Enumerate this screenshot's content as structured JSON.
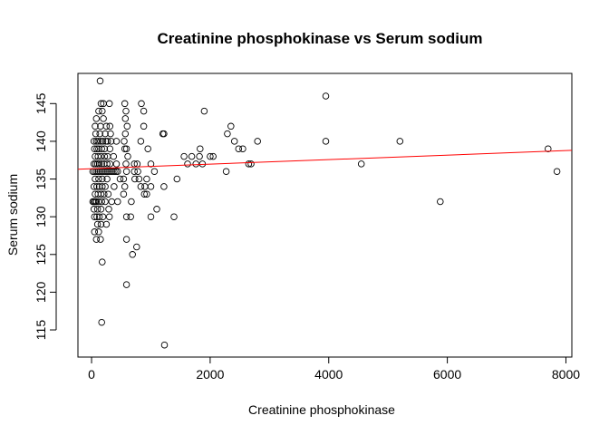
{
  "chart_data": {
    "type": "scatter",
    "title": "Creatinine phosphokinase vs Serum sodium",
    "xlabel": "Creatinine phosphokinase",
    "ylabel": "Serum sodium",
    "xlim": [
      -230,
      8100
    ],
    "ylim": [
      111.4,
      149.0
    ],
    "xticks": [
      0,
      2000,
      4000,
      6000,
      8000
    ],
    "yticks": [
      115,
      120,
      125,
      130,
      135,
      140,
      145
    ],
    "grid": false,
    "legend": "none",
    "fit_line": {
      "x": [
        -230,
        8100
      ],
      "y": [
        136.3,
        138.8
      ],
      "color": "#ff0000"
    },
    "points": [
      [
        145,
        148
      ],
      [
        160,
        145
      ],
      [
        200,
        145
      ],
      [
        300,
        145
      ],
      [
        560,
        145
      ],
      [
        840,
        145
      ],
      [
        120,
        144
      ],
      [
        180,
        144
      ],
      [
        580,
        144
      ],
      [
        880,
        144
      ],
      [
        1900,
        144
      ],
      [
        80,
        143
      ],
      [
        200,
        143
      ],
      [
        570,
        143
      ],
      [
        60,
        142
      ],
      [
        150,
        142
      ],
      [
        250,
        142
      ],
      [
        310,
        142
      ],
      [
        600,
        142
      ],
      [
        880,
        142
      ],
      [
        2350,
        142
      ],
      [
        3950,
        146
      ],
      [
        70,
        141
      ],
      [
        140,
        141
      ],
      [
        230,
        141
      ],
      [
        320,
        141
      ],
      [
        570,
        141
      ],
      [
        1200,
        141
      ],
      [
        1220,
        141
      ],
      [
        2290,
        141
      ],
      [
        40,
        140
      ],
      [
        80,
        140
      ],
      [
        110,
        140
      ],
      [
        150,
        140
      ],
      [
        190,
        140
      ],
      [
        240,
        140
      ],
      [
        270,
        140
      ],
      [
        330,
        140
      ],
      [
        420,
        140
      ],
      [
        550,
        140
      ],
      [
        830,
        140
      ],
      [
        2410,
        140
      ],
      [
        2800,
        140
      ],
      [
        3950,
        140
      ],
      [
        5200,
        140
      ],
      [
        50,
        139
      ],
      [
        90,
        139
      ],
      [
        120,
        139
      ],
      [
        170,
        139
      ],
      [
        220,
        139
      ],
      [
        310,
        139
      ],
      [
        560,
        139
      ],
      [
        590,
        139
      ],
      [
        950,
        139
      ],
      [
        1830,
        139
      ],
      [
        2480,
        139
      ],
      [
        2550,
        139
      ],
      [
        7700,
        139
      ],
      [
        60,
        138
      ],
      [
        110,
        138
      ],
      [
        160,
        138
      ],
      [
        220,
        138
      ],
      [
        270,
        138
      ],
      [
        370,
        138
      ],
      [
        610,
        138
      ],
      [
        1560,
        138
      ],
      [
        1690,
        138
      ],
      [
        1820,
        138
      ],
      [
        2000,
        138
      ],
      [
        2050,
        138
      ],
      [
        40,
        137
      ],
      [
        70,
        137
      ],
      [
        100,
        137
      ],
      [
        130,
        137
      ],
      [
        170,
        137
      ],
      [
        210,
        137
      ],
      [
        260,
        137
      ],
      [
        310,
        137
      ],
      [
        420,
        137
      ],
      [
        580,
        137
      ],
      [
        720,
        137
      ],
      [
        770,
        137
      ],
      [
        1000,
        137
      ],
      [
        1620,
        137
      ],
      [
        1760,
        137
      ],
      [
        1870,
        137
      ],
      [
        2650,
        137
      ],
      [
        2690,
        137
      ],
      [
        4550,
        137
      ],
      [
        20,
        136
      ],
      [
        50,
        136
      ],
      [
        80,
        136
      ],
      [
        110,
        136
      ],
      [
        140,
        136
      ],
      [
        170,
        136
      ],
      [
        200,
        136
      ],
      [
        230,
        136
      ],
      [
        260,
        136
      ],
      [
        290,
        136
      ],
      [
        320,
        136
      ],
      [
        350,
        136
      ],
      [
        380,
        136
      ],
      [
        410,
        136
      ],
      [
        440,
        136
      ],
      [
        590,
        136
      ],
      [
        720,
        136
      ],
      [
        780,
        136
      ],
      [
        1060,
        136
      ],
      [
        2270,
        136
      ],
      [
        7850,
        136
      ],
      [
        60,
        135
      ],
      [
        120,
        135
      ],
      [
        180,
        135
      ],
      [
        260,
        135
      ],
      [
        480,
        135
      ],
      [
        540,
        135
      ],
      [
        730,
        135
      ],
      [
        800,
        135
      ],
      [
        930,
        135
      ],
      [
        1440,
        135
      ],
      [
        40,
        134
      ],
      [
        90,
        134
      ],
      [
        130,
        134
      ],
      [
        180,
        134
      ],
      [
        230,
        134
      ],
      [
        380,
        134
      ],
      [
        560,
        134
      ],
      [
        830,
        134
      ],
      [
        900,
        134
      ],
      [
        1000,
        134
      ],
      [
        1220,
        134
      ],
      [
        60,
        133
      ],
      [
        110,
        133
      ],
      [
        160,
        133
      ],
      [
        210,
        133
      ],
      [
        280,
        133
      ],
      [
        540,
        133
      ],
      [
        890,
        133
      ],
      [
        930,
        133
      ],
      [
        20,
        132
      ],
      [
        40,
        132
      ],
      [
        60,
        132
      ],
      [
        80,
        132
      ],
      [
        120,
        132
      ],
      [
        170,
        132
      ],
      [
        230,
        132
      ],
      [
        340,
        132
      ],
      [
        440,
        132
      ],
      [
        670,
        132
      ],
      [
        5880,
        132
      ],
      [
        40,
        131
      ],
      [
        100,
        131
      ],
      [
        160,
        131
      ],
      [
        290,
        131
      ],
      [
        1100,
        131
      ],
      [
        50,
        130
      ],
      [
        90,
        130
      ],
      [
        130,
        130
      ],
      [
        190,
        130
      ],
      [
        300,
        130
      ],
      [
        590,
        130
      ],
      [
        660,
        130
      ],
      [
        1000,
        130
      ],
      [
        1390,
        130
      ],
      [
        100,
        129
      ],
      [
        160,
        129
      ],
      [
        250,
        129
      ],
      [
        50,
        128
      ],
      [
        120,
        128
      ],
      [
        80,
        127
      ],
      [
        150,
        127
      ],
      [
        590,
        127
      ],
      [
        760,
        126
      ],
      [
        690,
        125
      ],
      [
        180,
        124
      ],
      [
        590,
        121
      ],
      [
        170,
        116
      ],
      [
        1230,
        113
      ]
    ]
  }
}
